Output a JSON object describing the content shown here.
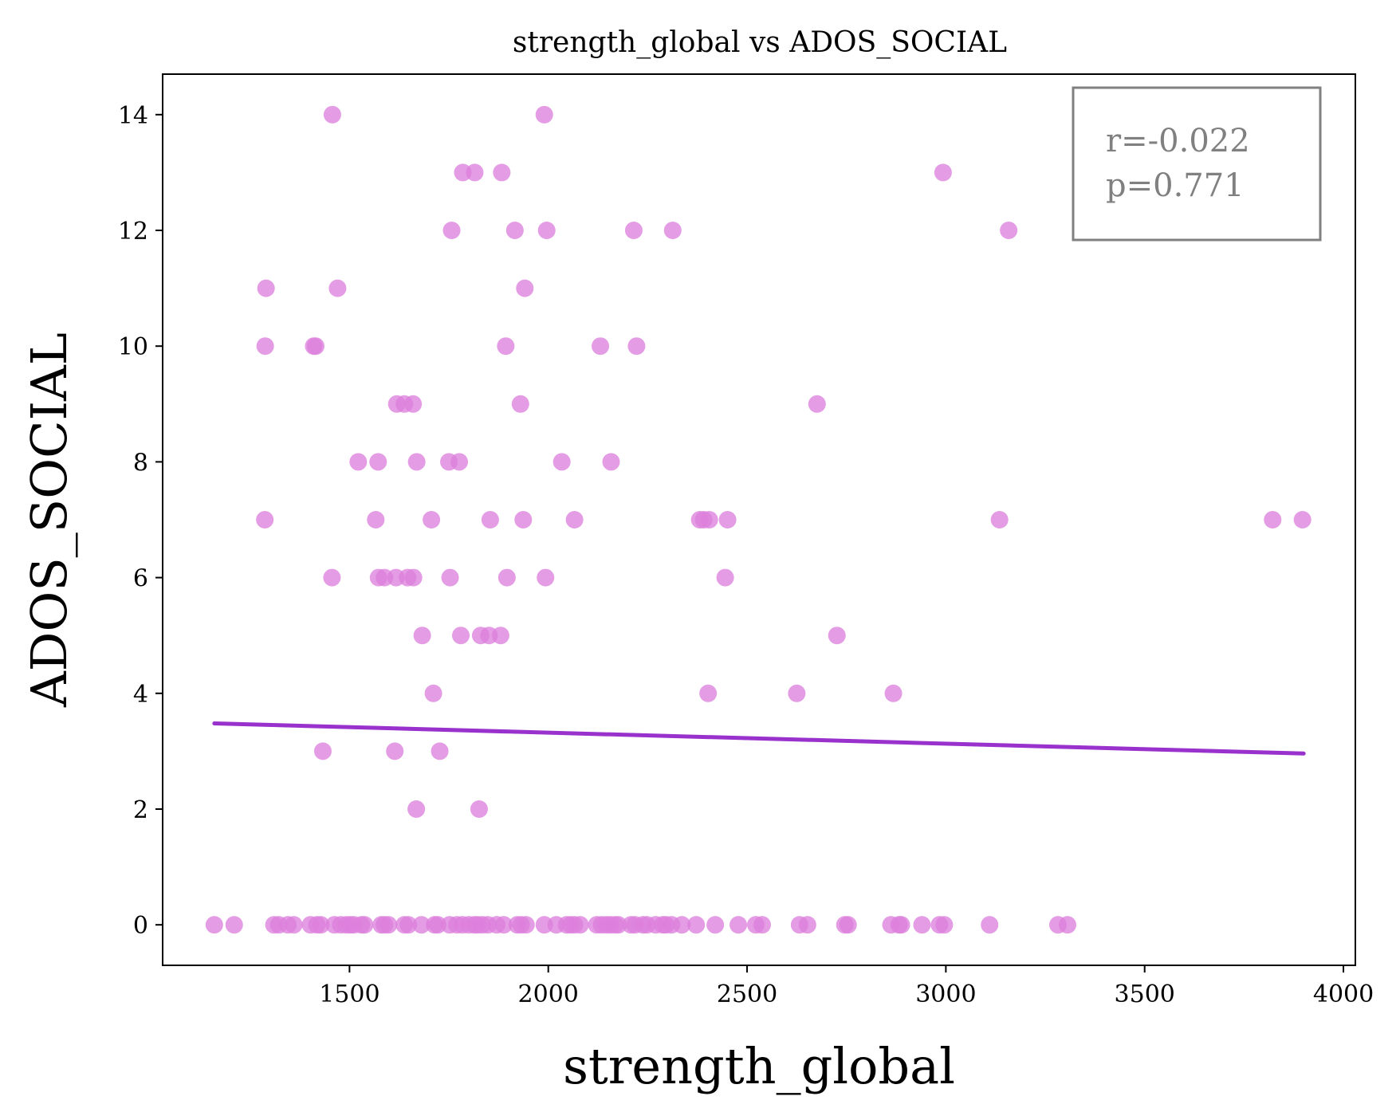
{
  "chart_data": {
    "type": "scatter",
    "title": "strength_global vs ADOS_SOCIAL",
    "xlabel": "strength_global",
    "ylabel": "ADOS_SOCIAL",
    "xlim": [
      1030,
      4030
    ],
    "ylim": [
      -0.7,
      14.7
    ],
    "xticks": [
      1500,
      2000,
      2500,
      3000,
      3500,
      4000
    ],
    "yticks": [
      0,
      2,
      4,
      6,
      8,
      10,
      12,
      14
    ],
    "grid": false,
    "point_color": "#dd80dd",
    "trend_color": "#9932cc",
    "trend_line": {
      "x": [
        1160,
        3900
      ],
      "y": [
        3.48,
        2.96
      ]
    },
    "stats": {
      "r_text": "r=-0.022",
      "p_text": "p=0.771",
      "placement": "top-right"
    },
    "points": [
      [
        1457,
        14
      ],
      [
        1990,
        14
      ],
      [
        1785,
        13
      ],
      [
        1815,
        13
      ],
      [
        1883,
        13
      ],
      [
        2993,
        13
      ],
      [
        1757,
        12
      ],
      [
        1916,
        12
      ],
      [
        1996,
        12
      ],
      [
        2215,
        12
      ],
      [
        2313,
        12
      ],
      [
        3158,
        12
      ],
      [
        1290,
        11
      ],
      [
        1470,
        11
      ],
      [
        1941,
        11
      ],
      [
        1288,
        10
      ],
      [
        1410,
        10
      ],
      [
        1415,
        10
      ],
      [
        1893,
        10
      ],
      [
        2131,
        10
      ],
      [
        2222,
        10
      ],
      [
        1619,
        9
      ],
      [
        1638,
        9
      ],
      [
        1660,
        9
      ],
      [
        1930,
        9
      ],
      [
        2676,
        9
      ],
      [
        1522,
        8
      ],
      [
        1572,
        8
      ],
      [
        1669,
        8
      ],
      [
        1750,
        8
      ],
      [
        1776,
        8
      ],
      [
        2034,
        8
      ],
      [
        2158,
        8
      ],
      [
        1287,
        7
      ],
      [
        1566,
        7
      ],
      [
        1706,
        7
      ],
      [
        1854,
        7
      ],
      [
        1937,
        7
      ],
      [
        2066,
        7
      ],
      [
        2381,
        7
      ],
      [
        2391,
        7
      ],
      [
        2405,
        7
      ],
      [
        2451,
        7
      ],
      [
        3135,
        7
      ],
      [
        3822,
        7
      ],
      [
        3897,
        7
      ],
      [
        1456,
        6
      ],
      [
        1573,
        6
      ],
      [
        1588,
        6
      ],
      [
        1617,
        6
      ],
      [
        1646,
        6
      ],
      [
        1661,
        6
      ],
      [
        1753,
        6
      ],
      [
        1896,
        6
      ],
      [
        1993,
        6
      ],
      [
        2445,
        6
      ],
      [
        1683,
        5
      ],
      [
        1780,
        5
      ],
      [
        1830,
        5
      ],
      [
        1851,
        5
      ],
      [
        1880,
        5
      ],
      [
        2726,
        5
      ],
      [
        1711,
        4
      ],
      [
        2402,
        4
      ],
      [
        2625,
        4
      ],
      [
        2868,
        4
      ],
      [
        1433,
        3
      ],
      [
        1614,
        3
      ],
      [
        1727,
        3
      ],
      [
        1668,
        2
      ],
      [
        1826,
        2
      ],
      [
        1160,
        0
      ],
      [
        1210,
        0
      ],
      [
        1310,
        0
      ],
      [
        1322,
        0
      ],
      [
        1345,
        0
      ],
      [
        1360,
        0
      ],
      [
        1402,
        0
      ],
      [
        1418,
        0
      ],
      [
        1428,
        0
      ],
      [
        1462,
        0
      ],
      [
        1478,
        0
      ],
      [
        1492,
        0
      ],
      [
        1502,
        0
      ],
      [
        1511,
        0
      ],
      [
        1530,
        0
      ],
      [
        1538,
        0
      ],
      [
        1580,
        0
      ],
      [
        1588,
        0
      ],
      [
        1598,
        0
      ],
      [
        1638,
        0
      ],
      [
        1648,
        0
      ],
      [
        1681,
        0
      ],
      [
        1714,
        0
      ],
      [
        1722,
        0
      ],
      [
        1752,
        0
      ],
      [
        1770,
        0
      ],
      [
        1784,
        0
      ],
      [
        1800,
        0
      ],
      [
        1814,
        0
      ],
      [
        1822,
        0
      ],
      [
        1834,
        0
      ],
      [
        1848,
        0
      ],
      [
        1870,
        0
      ],
      [
        1888,
        0
      ],
      [
        1922,
        0
      ],
      [
        1932,
        0
      ],
      [
        1944,
        0
      ],
      [
        1990,
        0
      ],
      [
        2020,
        0
      ],
      [
        2046,
        0
      ],
      [
        2056,
        0
      ],
      [
        2066,
        0
      ],
      [
        2080,
        0
      ],
      [
        2122,
        0
      ],
      [
        2134,
        0
      ],
      [
        2146,
        0
      ],
      [
        2156,
        0
      ],
      [
        2168,
        0
      ],
      [
        2176,
        0
      ],
      [
        2208,
        0
      ],
      [
        2218,
        0
      ],
      [
        2238,
        0
      ],
      [
        2248,
        0
      ],
      [
        2270,
        0
      ],
      [
        2288,
        0
      ],
      [
        2296,
        0
      ],
      [
        2310,
        0
      ],
      [
        2336,
        0
      ],
      [
        2372,
        0
      ],
      [
        2420,
        0
      ],
      [
        2478,
        0
      ],
      [
        2522,
        0
      ],
      [
        2538,
        0
      ],
      [
        2632,
        0
      ],
      [
        2652,
        0
      ],
      [
        2746,
        0
      ],
      [
        2754,
        0
      ],
      [
        2862,
        0
      ],
      [
        2882,
        0
      ],
      [
        2888,
        0
      ],
      [
        2940,
        0
      ],
      [
        2984,
        0
      ],
      [
        2996,
        0
      ],
      [
        3110,
        0
      ],
      [
        3282,
        0
      ],
      [
        3306,
        0
      ]
    ]
  }
}
